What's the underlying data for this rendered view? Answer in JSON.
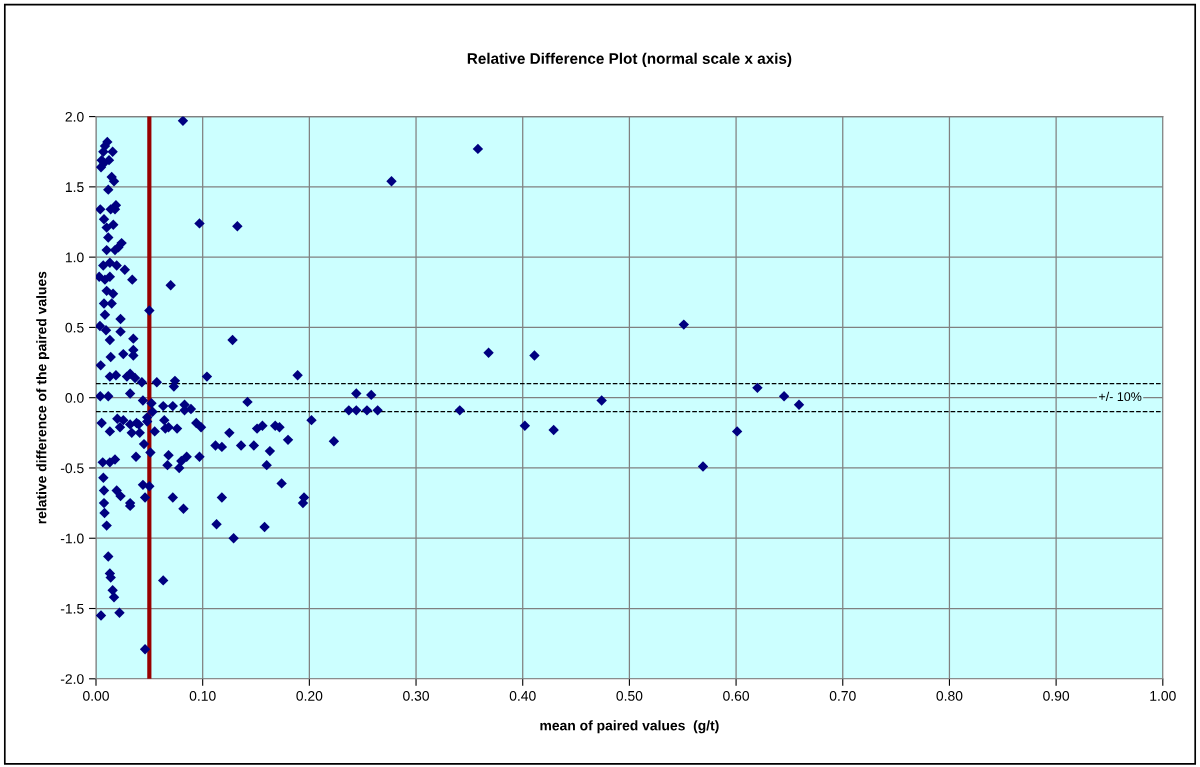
{
  "chart_data": {
    "type": "scatter",
    "title": "Relative Difference Plot (normal scale x axis)",
    "xlabel": "mean of paired values  (g/t)",
    "ylabel": "relative difference of the paired values",
    "xlim": [
      0,
      1
    ],
    "ylim": [
      -2,
      2
    ],
    "xticks": [
      {
        "value": 0,
        "label": "0.00"
      },
      {
        "value": 0.1,
        "label": "0.10"
      },
      {
        "value": 0.2,
        "label": "0.20"
      },
      {
        "value": 0.3,
        "label": "0.30"
      },
      {
        "value": 0.4,
        "label": "0.40"
      },
      {
        "value": 0.5,
        "label": "0.50"
      },
      {
        "value": 0.6,
        "label": "0.60"
      },
      {
        "value": 0.7,
        "label": "0.70"
      },
      {
        "value": 0.8,
        "label": "0.80"
      },
      {
        "value": 0.9,
        "label": "0.90"
      },
      {
        "value": 1,
        "label": "1.00"
      }
    ],
    "yticks": [
      {
        "value": -2,
        "label": "-2.0"
      },
      {
        "value": -1.5,
        "label": "-1.5"
      },
      {
        "value": -1,
        "label": "-1.0"
      },
      {
        "value": -0.5,
        "label": "-0.5"
      },
      {
        "value": 0,
        "label": "0.0"
      },
      {
        "value": 0.5,
        "label": "0.5"
      },
      {
        "value": 1,
        "label": "1.0"
      },
      {
        "value": 1.5,
        "label": "1.5"
      },
      {
        "value": 2,
        "label": "2.0"
      }
    ],
    "grid": true,
    "legend": false,
    "marker": "diamond",
    "ref_lines": [
      {
        "axis": "y",
        "value": 0.1,
        "color": "#000000",
        "line_style": "dashed"
      },
      {
        "axis": "y",
        "value": -0.1,
        "color": "#000000",
        "line_style": "dashed"
      },
      {
        "axis": "x",
        "value": 0.05,
        "color": "#990000",
        "line_style": "solid"
      }
    ],
    "annotations": [
      "+/- 10%"
    ],
    "series": [
      {
        "color": "#000080",
        "x": [
          0.277,
          0.358,
          0.368,
          0.411,
          0.551,
          0.244,
          0.258,
          0.237,
          0.244,
          0.254,
          0.264,
          0.341,
          0.402,
          0.429,
          0.474,
          0.223,
          0.62,
          0.645,
          0.659,
          0.601,
          0.569,
          0.0815,
          0.097,
          0.1325,
          0.07,
          0.05,
          0.128,
          0.104,
          0.189,
          0.057,
          0.074,
          0.073,
          0.043,
          0.142,
          0.044,
          0.052,
          0.063,
          0.072,
          0.083,
          0.089,
          0.083,
          0.053,
          0.048,
          0.048,
          0.064,
          0.068,
          0.065,
          0.076,
          0.094,
          0.0985,
          0.055,
          0.202,
          0.125,
          0.151,
          0.156,
          0.168,
          0.172,
          0.18,
          0.045,
          0.051,
          0.112,
          0.118,
          0.136,
          0.148,
          0.163,
          0.068,
          0.067,
          0.078,
          0.08,
          0.085,
          0.097,
          0.16,
          0.174,
          0.195,
          0.194,
          0.044,
          0.05,
          0.046,
          0.072,
          0.082,
          0.118,
          0.113,
          0.158,
          0.129,
          0.063,
          0.046,
          0.0106,
          0.0084,
          0.0069,
          0.0156,
          0.0053,
          0.0075,
          0.0122,
          0.0047,
          0.0147,
          0.0169,
          0.0115,
          0.004,
          0.0138,
          0.0178,
          0.0187,
          0.0075,
          0.01,
          0.0162,
          0.0115,
          0.024,
          0.021,
          0.0178,
          0.01,
          0.013,
          0.0068,
          0.0194,
          0.027,
          0.003,
          0.0084,
          0.013,
          0.034,
          0.01,
          0.016,
          0.0075,
          0.0147,
          0.0084,
          0.023,
          0.0037,
          0.0094,
          0.013,
          0.023,
          0.035,
          0.0138,
          0.0256,
          0.035,
          0.035,
          0.0044,
          0.013,
          0.0187,
          0.029,
          0.032,
          0.0366,
          0.004,
          0.0115,
          0.032,
          0.0053,
          0.013,
          0.0225,
          0.02,
          0.0256,
          0.032,
          0.038,
          0.0335,
          0.041,
          0.04,
          0.0063,
          0.013,
          0.0178,
          0.0375,
          0.0069,
          0.0075,
          0.0194,
          0.023,
          0.0075,
          0.032,
          0.032,
          0.008,
          0.01,
          0.0115,
          0.013,
          0.0138,
          0.0156,
          0.0169,
          0.0047,
          0.022
        ],
        "values": [
          1.54,
          1.77,
          0.32,
          0.3,
          0.52,
          0.03,
          0.02,
          -0.09,
          -0.09,
          -0.09,
          -0.09,
          -0.09,
          -0.2,
          -0.23,
          -0.02,
          -0.31,
          0.07,
          0.01,
          -0.05,
          -0.24,
          -0.49,
          1.97,
          1.24,
          1.22,
          0.8,
          0.62,
          0.41,
          0.15,
          0.16,
          0.11,
          0.12,
          0.08,
          0.11,
          -0.03,
          -0.02,
          -0.04,
          -0.06,
          -0.06,
          -0.05,
          -0.08,
          -0.09,
          -0.1,
          -0.14,
          -0.17,
          -0.16,
          -0.21,
          -0.22,
          -0.22,
          -0.18,
          -0.21,
          -0.24,
          -0.16,
          -0.25,
          -0.22,
          -0.2,
          -0.2,
          -0.21,
          -0.3,
          -0.33,
          -0.39,
          -0.34,
          -0.35,
          -0.34,
          -0.34,
          -0.38,
          -0.41,
          -0.48,
          -0.5,
          -0.45,
          -0.42,
          -0.42,
          -0.48,
          -0.61,
          -0.71,
          -0.75,
          -0.62,
          -0.63,
          -0.71,
          -0.71,
          -0.79,
          -0.71,
          -0.9,
          -0.92,
          -1.0,
          -1.3,
          -1.79,
          1.82,
          1.79,
          1.75,
          1.75,
          1.69,
          1.67,
          1.69,
          1.64,
          1.57,
          1.54,
          1.48,
          1.34,
          1.34,
          1.34,
          1.37,
          1.27,
          1.21,
          1.23,
          1.14,
          1.1,
          1.07,
          1.05,
          1.05,
          0.96,
          0.94,
          0.94,
          0.91,
          0.86,
          0.84,
          0.86,
          0.84,
          0.76,
          0.74,
          0.67,
          0.67,
          0.59,
          0.56,
          0.51,
          0.48,
          0.41,
          0.47,
          0.42,
          0.29,
          0.31,
          0.34,
          0.3,
          0.23,
          0.15,
          0.16,
          0.15,
          0.17,
          0.14,
          0.01,
          0.01,
          0.03,
          -0.18,
          -0.24,
          -0.21,
          -0.15,
          -0.16,
          -0.19,
          -0.18,
          -0.25,
          -0.25,
          -0.19,
          -0.46,
          -0.46,
          -0.44,
          -0.42,
          -0.57,
          -0.66,
          -0.66,
          -0.7,
          -0.75,
          -0.75,
          -0.77,
          -0.82,
          -0.91,
          -1.13,
          -1.25,
          -1.28,
          -1.37,
          -1.42,
          -1.55,
          -1.53
        ]
      }
    ]
  }
}
